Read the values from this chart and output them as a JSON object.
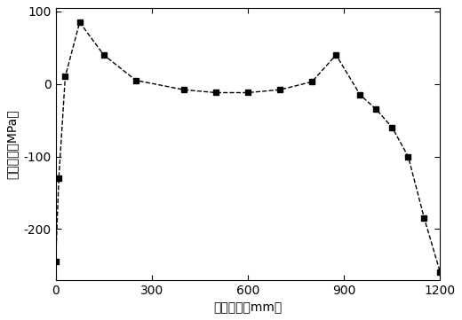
{
  "x": [
    0,
    10,
    30,
    75,
    150,
    250,
    400,
    500,
    600,
    700,
    800,
    875,
    950,
    1000,
    1050,
    1100,
    1150,
    1200
  ],
  "y": [
    -245,
    -130,
    10,
    85,
    40,
    5,
    -8,
    -12,
    -12,
    -8,
    3,
    40,
    -15,
    -35,
    -60,
    -100,
    -185,
    -260
  ],
  "xlabel": "宽度坐标（mm）",
  "ylabel": "残余应力（MPa）",
  "xlim": [
    0,
    1200
  ],
  "ylim": [
    -270,
    105
  ],
  "xticks": [
    0,
    300,
    600,
    900,
    1200
  ],
  "yticks": [
    -200,
    -100,
    0,
    100
  ],
  "line_color": "#000000",
  "marker": "s",
  "markersize": 5,
  "line_style": "--",
  "background_color": "#ffffff",
  "linewidth": 1.0
}
